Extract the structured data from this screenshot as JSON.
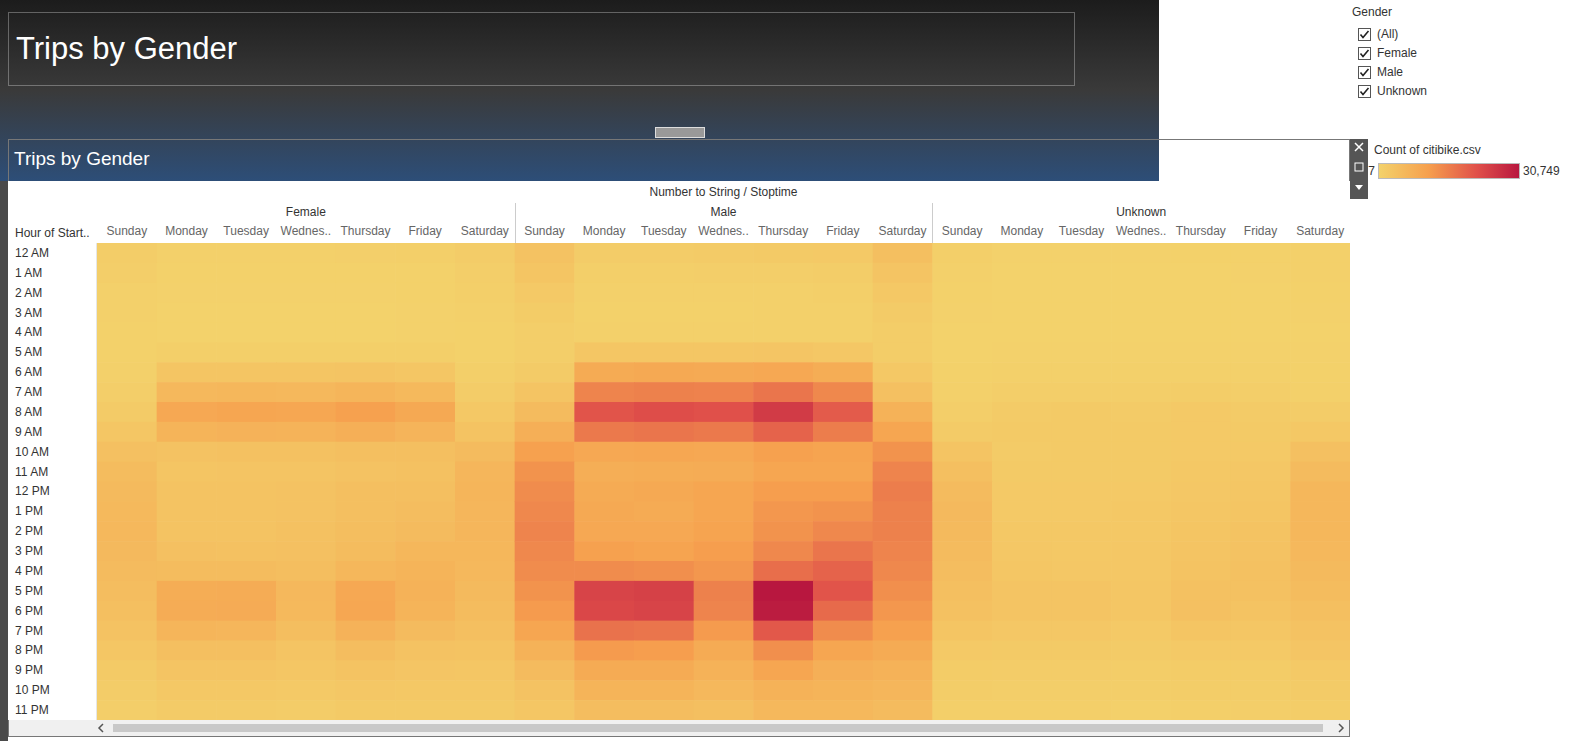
{
  "header": {
    "title": "Trips by Gender"
  },
  "filter": {
    "title": "Gender",
    "options": [
      "(All)",
      "Female",
      "Male",
      "Unknown"
    ],
    "checked": [
      true,
      true,
      true,
      true
    ]
  },
  "chart_data": {
    "type": "heatmap",
    "title": "Trips by Gender",
    "column_header": "Number to String / Stoptime",
    "row_header": "Hour of Start..",
    "groups": [
      "Female",
      "Male",
      "Unknown"
    ],
    "categories": [
      "Sunday",
      "Monday",
      "Tuesday",
      "Wednes..",
      "Thursday",
      "Friday",
      "Saturday"
    ],
    "rows": [
      "12 AM",
      "1 AM",
      "2 AM",
      "3 AM",
      "4 AM",
      "5 AM",
      "6 AM",
      "7 AM",
      "8 AM",
      "9 AM",
      "10 AM",
      "11 AM",
      "12 PM",
      "1 PM",
      "2 PM",
      "3 PM",
      "4 PM",
      "5 PM",
      "6 PM",
      "7 PM",
      "8 PM",
      "9 PM",
      "10 PM",
      "11 PM"
    ],
    "cells": {
      "Female": [
        [
          1000,
          400,
          400,
          450,
          550,
          600,
          1200
        ],
        [
          800,
          200,
          200,
          250,
          280,
          300,
          900
        ],
        [
          500,
          120,
          120,
          140,
          150,
          200,
          600
        ],
        [
          350,
          80,
          80,
          90,
          100,
          120,
          400
        ],
        [
          250,
          100,
          100,
          110,
          110,
          120,
          300
        ],
        [
          250,
          700,
          700,
          750,
          750,
          650,
          300
        ],
        [
          450,
          2800,
          2900,
          2900,
          3000,
          2600,
          650
        ],
        [
          900,
          5500,
          5800,
          5700,
          6200,
          5400,
          1200
        ],
        [
          1600,
          9000,
          9500,
          9300,
          10500,
          8800,
          2200
        ],
        [
          2500,
          6500,
          6800,
          6700,
          7500,
          6400,
          3200
        ],
        [
          3800,
          3500,
          3600,
          3600,
          4000,
          4000,
          5000
        ],
        [
          4800,
          2900,
          3000,
          3100,
          3500,
          3600,
          6000
        ],
        [
          5200,
          3200,
          3300,
          3500,
          4000,
          4100,
          6300
        ],
        [
          5400,
          3200,
          3200,
          3500,
          4200,
          4500,
          6100
        ],
        [
          5500,
          3300,
          3300,
          3600,
          4400,
          5000,
          6000
        ],
        [
          5300,
          3800,
          3700,
          3900,
          4800,
          5800,
          5800
        ],
        [
          5000,
          4800,
          4700,
          4300,
          5800,
          6500,
          5600
        ],
        [
          4600,
          8000,
          8200,
          5500,
          9000,
          7000,
          5200
        ],
        [
          4200,
          8200,
          8300,
          5400,
          9200,
          6500,
          4800
        ],
        [
          3400,
          6200,
          6000,
          4300,
          6800,
          5000,
          4100
        ],
        [
          2500,
          4200,
          4000,
          3100,
          4500,
          3500,
          3200
        ],
        [
          1800,
          3000,
          3000,
          2500,
          3300,
          2700,
          2600
        ],
        [
          1300,
          2200,
          2200,
          1900,
          2400,
          2200,
          2100
        ],
        [
          900,
          1500,
          1500,
          1300,
          1700,
          1800,
          1700
        ]
      ],
      "Male": [
        [
          3500,
          1200,
          1300,
          1500,
          1800,
          2000,
          4000
        ],
        [
          2800,
          600,
          700,
          800,
          900,
          1100,
          3000
        ],
        [
          2000,
          350,
          400,
          450,
          500,
          700,
          2200
        ],
        [
          1400,
          250,
          250,
          300,
          350,
          450,
          1500
        ],
        [
          900,
          350,
          350,
          400,
          400,
          450,
          1000
        ],
        [
          800,
          2500,
          2600,
          2600,
          2700,
          2400,
          1000
        ],
        [
          1500,
          8500,
          8800,
          8600,
          9000,
          8000,
          2200
        ],
        [
          3000,
          14500,
          15000,
          14800,
          16500,
          14000,
          3800
        ],
        [
          5000,
          21000,
          22000,
          21500,
          25000,
          20000,
          7000
        ],
        [
          7500,
          16000,
          16500,
          16000,
          19000,
          15500,
          9500
        ],
        [
          10500,
          9000,
          9200,
          9000,
          10500,
          10000,
          12500
        ],
        [
          12500,
          7800,
          8000,
          8200,
          9500,
          9500,
          14500
        ],
        [
          13500,
          8500,
          8800,
          9500,
          11000,
          11000,
          15500
        ],
        [
          14000,
          8800,
          8500,
          9500,
          12000,
          12500,
          15000
        ],
        [
          14500,
          9000,
          9000,
          10000,
          12500,
          14000,
          15000
        ],
        [
          14000,
          10500,
          10000,
          11000,
          14000,
          16500,
          14500
        ],
        [
          13500,
          13500,
          13000,
          12000,
          17500,
          19000,
          14000
        ],
        [
          12500,
          23500,
          24000,
          15000,
          30749,
          21000,
          13000
        ],
        [
          11500,
          23000,
          23500,
          14500,
          30000,
          18000,
          12000
        ],
        [
          9500,
          17000,
          16500,
          11500,
          20500,
          13500,
          10500
        ],
        [
          7000,
          11500,
          11000,
          8500,
          13000,
          9500,
          8500
        ],
        [
          5000,
          8500,
          8500,
          7000,
          9500,
          7500,
          7000
        ],
        [
          3500,
          6500,
          6500,
          5500,
          7000,
          6500,
          6000
        ],
        [
          2500,
          4500,
          4500,
          4000,
          5500,
          5500,
          5000
        ]
      ],
      "Unknown": [
        [
          600,
          150,
          150,
          150,
          200,
          200,
          500
        ],
        [
          400,
          80,
          80,
          90,
          100,
          120,
          350
        ],
        [
          250,
          50,
          50,
          50,
          60,
          80,
          250
        ],
        [
          150,
          30,
          30,
          30,
          40,
          50,
          150
        ],
        [
          100,
          30,
          30,
          30,
          30,
          40,
          100
        ],
        [
          100,
          150,
          150,
          150,
          150,
          150,
          120
        ],
        [
          200,
          450,
          450,
          450,
          500,
          450,
          250
        ],
        [
          400,
          900,
          900,
          900,
          1000,
          900,
          500
        ],
        [
          800,
          1600,
          1700,
          1600,
          1900,
          1600,
          1200
        ],
        [
          1600,
          1700,
          1800,
          1700,
          2000,
          1800,
          2200
        ],
        [
          3000,
          1600,
          1700,
          1700,
          1900,
          2000,
          3800
        ],
        [
          4200,
          1700,
          1800,
          1800,
          2100,
          2300,
          5000
        ],
        [
          5000,
          1900,
          1900,
          2000,
          2400,
          2600,
          5800
        ],
        [
          5300,
          2000,
          2000,
          2100,
          2600,
          2900,
          5900
        ],
        [
          5200,
          2100,
          2100,
          2200,
          2800,
          3200,
          5800
        ],
        [
          5000,
          2300,
          2200,
          2300,
          3000,
          3500,
          5500
        ],
        [
          4600,
          2500,
          2400,
          2400,
          3300,
          3700,
          5200
        ],
        [
          4100,
          3000,
          3000,
          2500,
          3700,
          3600,
          4700
        ],
        [
          3600,
          3000,
          3000,
          2500,
          3800,
          3300,
          4200
        ],
        [
          2800,
          2400,
          2400,
          2000,
          2900,
          2600,
          3500
        ],
        [
          2000,
          1700,
          1700,
          1500,
          2000,
          1900,
          2700
        ],
        [
          1400,
          1200,
          1200,
          1100,
          1400,
          1400,
          2000
        ],
        [
          1000,
          900,
          900,
          800,
          1000,
          1000,
          1500
        ],
        [
          700,
          600,
          600,
          500,
          700,
          800,
          1100
        ]
      ]
    },
    "colorbar": {
      "title": "Count of citibike.csv",
      "range": [
        7,
        30749
      ],
      "ticks": [
        7,
        {
          "value": 30749,
          "label": "30,749"
        }
      ]
    }
  }
}
